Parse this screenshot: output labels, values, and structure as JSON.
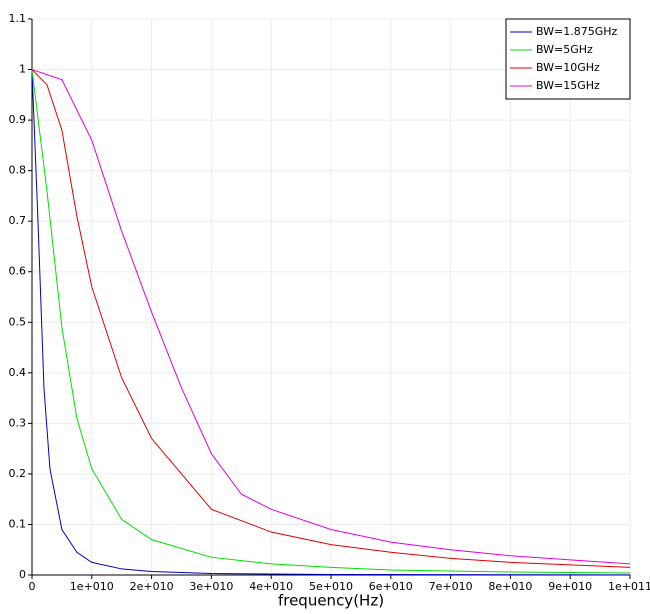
{
  "chart_data": {
    "type": "line",
    "xlabel": "frequency(Hz)",
    "xlim": [
      0,
      100000000000
    ],
    "ylim": [
      0,
      1.1
    ],
    "xticks": [
      0,
      {
        "value": 10000000000,
        "label": "1e+010"
      },
      {
        "value": 20000000000,
        "label": "2e+010"
      },
      {
        "value": 30000000000,
        "label": "3e+010"
      },
      {
        "value": 40000000000,
        "label": "4e+010"
      },
      {
        "value": 50000000000,
        "label": "5e+010"
      },
      {
        "value": 60000000000,
        "label": "6e+010"
      },
      {
        "value": 70000000000,
        "label": "7e+010"
      },
      {
        "value": 80000000000,
        "label": "8e+010"
      },
      {
        "value": 90000000000,
        "label": "9e+010"
      },
      {
        "value": 100000000000,
        "label": "1e+011"
      }
    ],
    "yticks": [
      0,
      0.1,
      0.2,
      0.3,
      0.4,
      0.5,
      0.6,
      0.7,
      0.8,
      0.9,
      1,
      1.1
    ],
    "grid": true,
    "legend": "upper right",
    "series": [
      {
        "name": "BW=1.875GHz",
        "color": "#0000c0",
        "x": [
          0,
          1000000000,
          2000000000,
          3000000000,
          5000000000,
          7500000000,
          10000000000,
          15000000000,
          20000000000,
          30000000000,
          50000000000,
          100000000000
        ],
        "values": [
          1,
          0.7,
          0.37,
          0.21,
          0.09,
          0.045,
          0.025,
          0.012,
          0.007,
          0.003,
          0.001,
          0.0003
        ]
      },
      {
        "name": "BW=5GHz",
        "color": "#00e000",
        "x": [
          0,
          2500000000,
          5000000000,
          7500000000,
          10000000000,
          15000000000,
          20000000000,
          30000000000,
          40000000000,
          50000000000,
          60000000000,
          80000000000,
          100000000000
        ],
        "values": [
          1,
          0.76,
          0.49,
          0.31,
          0.21,
          0.11,
          0.07,
          0.035,
          0.022,
          0.015,
          0.01,
          0.006,
          0.004
        ]
      },
      {
        "name": "BW=10GHz",
        "color": "#e00000",
        "x": [
          0,
          2500000000,
          5000000000,
          7500000000,
          10000000000,
          15000000000,
          20000000000,
          30000000000,
          40000000000,
          50000000000,
          60000000000,
          70000000000,
          80000000000,
          90000000000,
          100000000000
        ],
        "values": [
          1,
          0.97,
          0.88,
          0.71,
          0.57,
          0.39,
          0.27,
          0.13,
          0.085,
          0.06,
          0.045,
          0.033,
          0.025,
          0.02,
          0.015
        ]
      },
      {
        "name": "BW=15GHz",
        "color": "#e000e0",
        "x": [
          0,
          5000000000,
          10000000000,
          15000000000,
          20000000000,
          25000000000,
          30000000000,
          35000000000,
          40000000000,
          50000000000,
          60000000000,
          70000000000,
          80000000000,
          90000000000,
          100000000000
        ],
        "values": [
          1,
          0.98,
          0.86,
          0.68,
          0.52,
          0.37,
          0.24,
          0.16,
          0.13,
          0.09,
          0.065,
          0.05,
          0.038,
          0.03,
          0.022
        ]
      }
    ]
  }
}
